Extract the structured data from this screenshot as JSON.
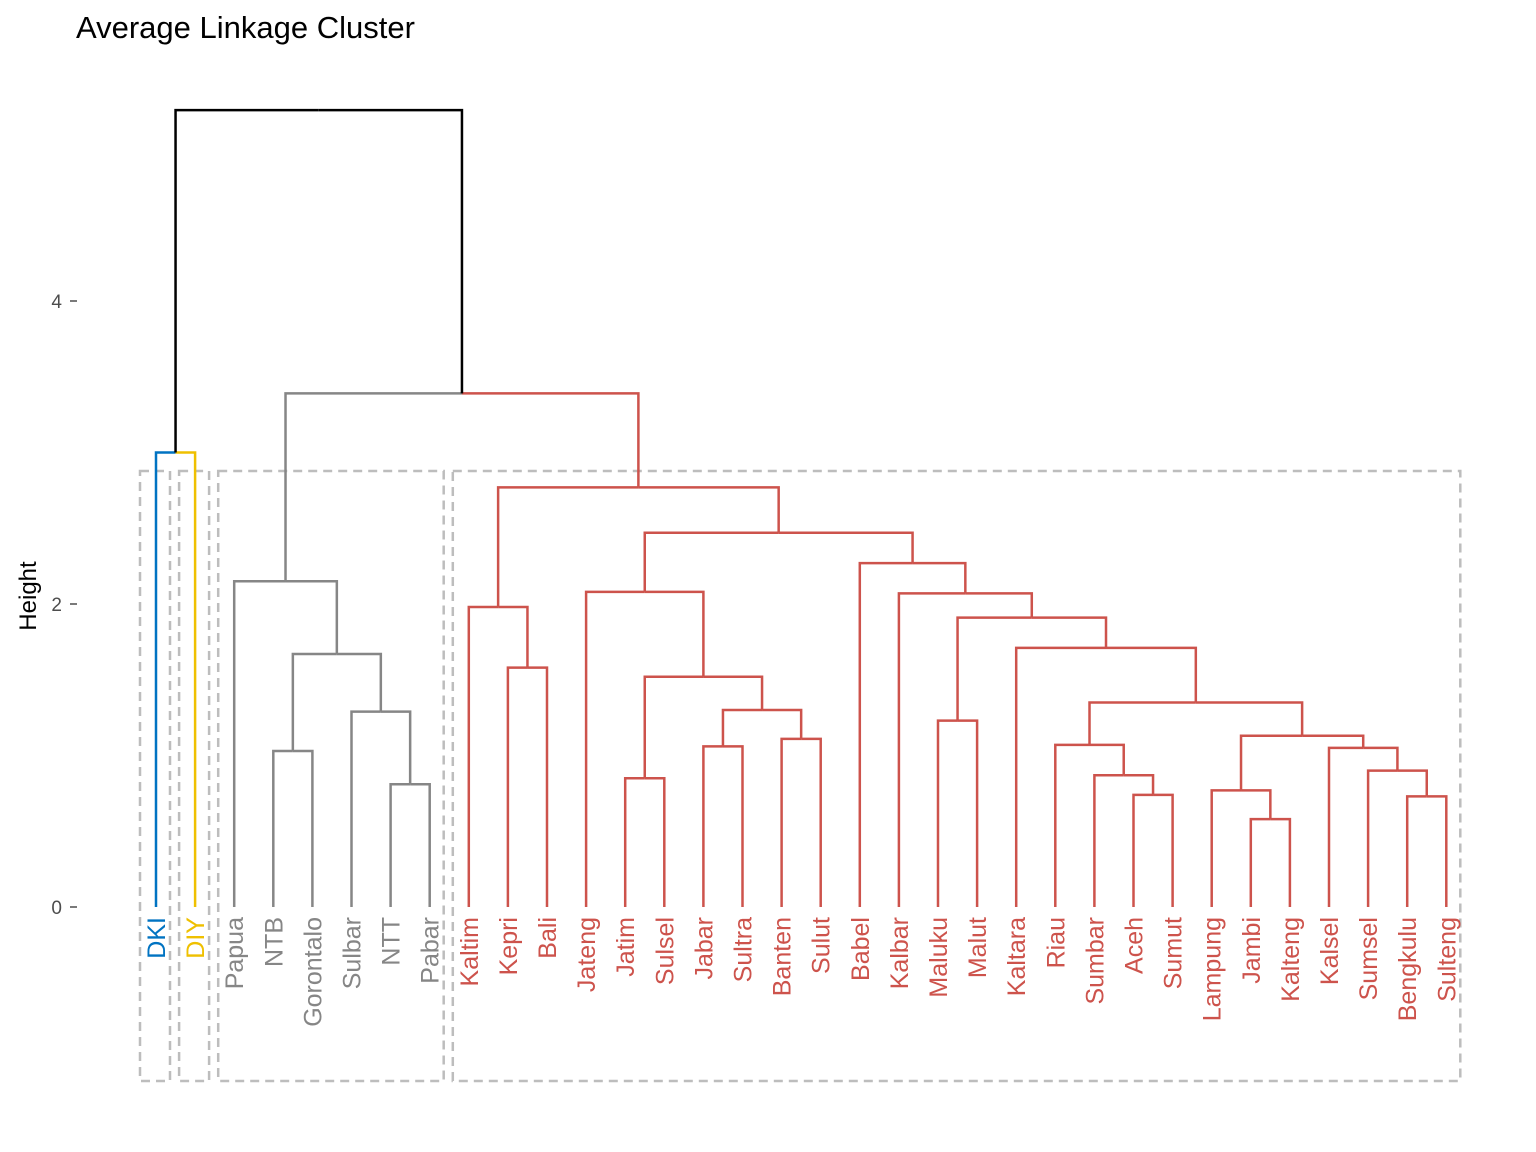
{
  "chart_data": {
    "type": "dendrogram",
    "title": "Average Linkage Cluster",
    "ylabel": "Height",
    "xlabel": "",
    "ylim": [
      0,
      5.3
    ],
    "yticks": [
      0,
      2,
      4
    ],
    "grid": false,
    "colors": {
      "root": "#000000",
      "box": "#bdbdbd",
      "cluster_blue": "#0073c2",
      "cluster_gold": "#efc000",
      "cluster_gray": "#868686",
      "cluster_red": "#cd534c"
    },
    "leaves": [
      {
        "label": "DKI",
        "cluster": "cluster_blue"
      },
      {
        "label": "DIY",
        "cluster": "cluster_gold"
      },
      {
        "label": "Papua",
        "cluster": "cluster_gray"
      },
      {
        "label": "NTB",
        "cluster": "cluster_gray"
      },
      {
        "label": "Gorontalo",
        "cluster": "cluster_gray"
      },
      {
        "label": "Sulbar",
        "cluster": "cluster_gray"
      },
      {
        "label": "NTT",
        "cluster": "cluster_gray"
      },
      {
        "label": "Pabar",
        "cluster": "cluster_gray"
      },
      {
        "label": "Kaltim",
        "cluster": "cluster_red"
      },
      {
        "label": "Kepri",
        "cluster": "cluster_red"
      },
      {
        "label": "Bali",
        "cluster": "cluster_red"
      },
      {
        "label": "Jateng",
        "cluster": "cluster_red"
      },
      {
        "label": "Jatim",
        "cluster": "cluster_red"
      },
      {
        "label": "Sulsel",
        "cluster": "cluster_red"
      },
      {
        "label": "Jabar",
        "cluster": "cluster_red"
      },
      {
        "label": "Sultra",
        "cluster": "cluster_red"
      },
      {
        "label": "Banten",
        "cluster": "cluster_red"
      },
      {
        "label": "Sulut",
        "cluster": "cluster_red"
      },
      {
        "label": "Babel",
        "cluster": "cluster_red"
      },
      {
        "label": "Kalbar",
        "cluster": "cluster_red"
      },
      {
        "label": "Maluku",
        "cluster": "cluster_red"
      },
      {
        "label": "Malut",
        "cluster": "cluster_red"
      },
      {
        "label": "Kaltara",
        "cluster": "cluster_red"
      },
      {
        "label": "Riau",
        "cluster": "cluster_red"
      },
      {
        "label": "Sumbar",
        "cluster": "cluster_red"
      },
      {
        "label": "Aceh",
        "cluster": "cluster_red"
      },
      {
        "label": "Sumut",
        "cluster": "cluster_red"
      },
      {
        "label": "Lampung",
        "cluster": "cluster_red"
      },
      {
        "label": "Jambi",
        "cluster": "cluster_red"
      },
      {
        "label": "Kalteng",
        "cluster": "cluster_red"
      },
      {
        "label": "Kalsel",
        "cluster": "cluster_red"
      },
      {
        "label": "Sumsel",
        "cluster": "cluster_red"
      },
      {
        "label": "Bengkulu",
        "cluster": "cluster_red"
      },
      {
        "label": "Sulteng",
        "cluster": "cluster_red"
      }
    ],
    "merges": [
      {
        "id": "m_jambi_kalteng",
        "children": [
          "Jambi",
          "Kalteng"
        ],
        "height": 0.58,
        "color": "cluster_red"
      },
      {
        "id": "m_aceh_sumut",
        "children": [
          "Aceh",
          "Sumut"
        ],
        "height": 0.74,
        "color": "cluster_red"
      },
      {
        "id": "m_bengkulu_sulteng",
        "children": [
          "Bengkulu",
          "Sulteng"
        ],
        "height": 0.73,
        "color": "cluster_red"
      },
      {
        "id": "m_lampung",
        "children": [
          "Lampung",
          "m_jambi_kalteng"
        ],
        "height": 0.77,
        "color": "cluster_red"
      },
      {
        "id": "m_ntt_pabar",
        "children": [
          "NTT",
          "Pabar"
        ],
        "height": 0.81,
        "color": "cluster_gray"
      },
      {
        "id": "m_jatim_sulsel",
        "children": [
          "Jatim",
          "Sulsel"
        ],
        "height": 0.85,
        "color": "cluster_red"
      },
      {
        "id": "m_sumbar",
        "children": [
          "Sumbar",
          "m_aceh_sumut"
        ],
        "height": 0.87,
        "color": "cluster_red"
      },
      {
        "id": "m_sumsel",
        "children": [
          "Sumsel",
          "m_bengkulu_sulteng"
        ],
        "height": 0.9,
        "color": "cluster_red"
      },
      {
        "id": "m_ntb_gorontalo",
        "children": [
          "NTB",
          "Gorontalo"
        ],
        "height": 1.03,
        "color": "cluster_gray"
      },
      {
        "id": "m_kalsel",
        "children": [
          "Kalsel",
          "m_sumsel"
        ],
        "height": 1.05,
        "color": "cluster_red"
      },
      {
        "id": "m_jabar_sultra",
        "children": [
          "Jabar",
          "Sultra"
        ],
        "height": 1.06,
        "color": "cluster_red"
      },
      {
        "id": "m_riau",
        "children": [
          "Riau",
          "m_sumbar"
        ],
        "height": 1.07,
        "color": "cluster_red"
      },
      {
        "id": "m_banten_sulut",
        "children": [
          "Banten",
          "Sulut"
        ],
        "height": 1.11,
        "color": "cluster_red"
      },
      {
        "id": "m_lampung_kalsel",
        "children": [
          "m_lampung",
          "m_kalsel"
        ],
        "height": 1.13,
        "color": "cluster_red"
      },
      {
        "id": "m_maluku_malut",
        "children": [
          "Maluku",
          "Malut"
        ],
        "height": 1.23,
        "color": "cluster_red"
      },
      {
        "id": "m_sulbar",
        "children": [
          "Sulbar",
          "m_ntt_pabar"
        ],
        "height": 1.29,
        "color": "cluster_gray"
      },
      {
        "id": "m_jabar_banten",
        "children": [
          "m_jabar_sultra",
          "m_banten_sulut"
        ],
        "height": 1.3,
        "color": "cluster_red"
      },
      {
        "id": "m_riau_lampung",
        "children": [
          "m_riau",
          "m_lampung_kalsel"
        ],
        "height": 1.35,
        "color": "cluster_red"
      },
      {
        "id": "m_jatim_jabar",
        "children": [
          "m_jatim_sulsel",
          "m_jabar_banten"
        ],
        "height": 1.52,
        "color": "cluster_red"
      },
      {
        "id": "m_kepri_bali",
        "children": [
          "Kepri",
          "Bali"
        ],
        "height": 1.58,
        "color": "cluster_red"
      },
      {
        "id": "m_ntb_sulbar",
        "children": [
          "m_ntb_gorontalo",
          "m_sulbar"
        ],
        "height": 1.67,
        "color": "cluster_gray"
      },
      {
        "id": "m_kaltara",
        "children": [
          "Kaltara",
          "m_riau_lampung"
        ],
        "height": 1.71,
        "color": "cluster_red"
      },
      {
        "id": "m_maluku_kaltara",
        "children": [
          "m_maluku_malut",
          "m_kaltara"
        ],
        "height": 1.91,
        "color": "cluster_red"
      },
      {
        "id": "m_kaltim",
        "children": [
          "Kaltim",
          "m_kepri_bali"
        ],
        "height": 1.98,
        "color": "cluster_red"
      },
      {
        "id": "m_kalbar",
        "children": [
          "Kalbar",
          "m_maluku_kaltara"
        ],
        "height": 2.07,
        "color": "cluster_red"
      },
      {
        "id": "m_jateng",
        "children": [
          "Jateng",
          "m_jatim_jabar"
        ],
        "height": 2.08,
        "color": "cluster_red"
      },
      {
        "id": "m_papua",
        "children": [
          "Papua",
          "m_ntb_sulbar"
        ],
        "height": 2.15,
        "color": "cluster_gray"
      },
      {
        "id": "m_babel",
        "children": [
          "Babel",
          "m_kalbar"
        ],
        "height": 2.27,
        "color": "cluster_red"
      },
      {
        "id": "m_jateng_babel",
        "children": [
          "m_jateng",
          "m_babel"
        ],
        "height": 2.47,
        "color": "cluster_red"
      },
      {
        "id": "m_kaltim_jateng",
        "children": [
          "m_kaltim",
          "m_jateng_babel"
        ],
        "height": 2.77,
        "color": "cluster_red"
      },
      {
        "id": "m_dki_diy",
        "children": [
          "DKI",
          "DIY"
        ],
        "height": 3.0,
        "color": "split"
      },
      {
        "id": "m_gray_red",
        "children": [
          "m_papua",
          "m_kaltim_jateng"
        ],
        "height": 3.39,
        "color": "split"
      },
      {
        "id": "m_root",
        "children": [
          "m_dki_diy",
          "m_gray_red"
        ],
        "height": 5.26,
        "color": "root"
      }
    ],
    "cluster_boxes": [
      {
        "leaves": [
          "DKI"
        ]
      },
      {
        "leaves": [
          "DIY"
        ]
      },
      {
        "leaves": [
          "Papua",
          "Pabar"
        ]
      },
      {
        "leaves": [
          "Kaltim",
          "Sulteng"
        ]
      }
    ]
  }
}
